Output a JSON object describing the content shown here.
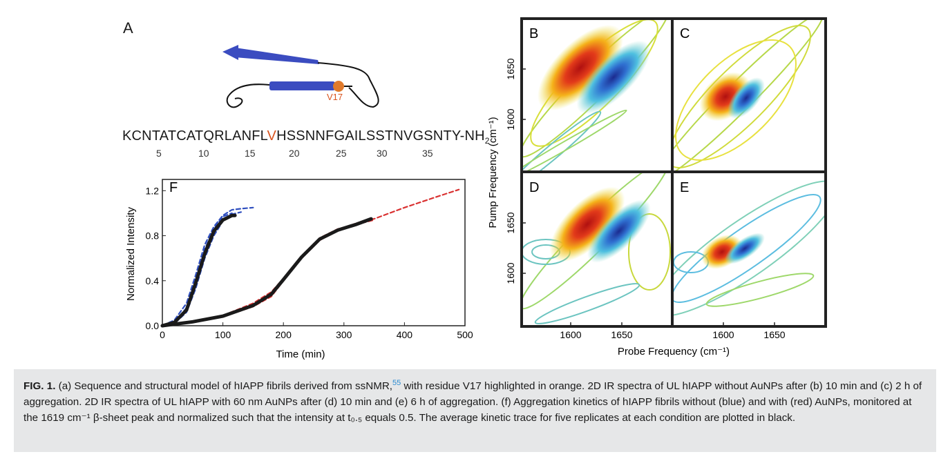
{
  "panelA": {
    "letter": "A",
    "residue_label": "V17",
    "sequence_pre": "KCNTATCATQRLANFL",
    "sequence_highlight": "V",
    "sequence_post": "HSSNNFGAILSSTNVGSNTY-NH",
    "sequence_sub": "2",
    "residue_numbers": [
      "5",
      "10",
      "15",
      "20",
      "25",
      "30",
      "35"
    ]
  },
  "spectra": {
    "panels": [
      "B",
      "C",
      "D",
      "E"
    ],
    "ylabel": "Pump Frequency (cm⁻¹)",
    "xlabel": "Probe Frequency (cm⁻¹)",
    "yticks": [
      "1650",
      "1600"
    ],
    "xticks": [
      "1600",
      "1650"
    ]
  },
  "chart_data": {
    "type": "line",
    "panel_letter": "F",
    "xlabel": "Time (min)",
    "ylabel": "Normalized Intensity",
    "xlim": [
      0,
      500
    ],
    "ylim": [
      0,
      1.3
    ],
    "xticks": [
      "0",
      "100",
      "200",
      "300",
      "400",
      "500"
    ],
    "yticks": [
      "0.0",
      "0.4",
      "0.8",
      "1.2"
    ],
    "series": [
      {
        "color": "#2f4fbf",
        "style": "dashed",
        "x": [
          0,
          20,
          40,
          55,
          70,
          85,
          100,
          115,
          130,
          150
        ],
        "y": [
          0,
          0.05,
          0.2,
          0.45,
          0.72,
          0.88,
          0.98,
          1.03,
          1.04,
          1.05
        ]
      },
      {
        "color": "#2f4fbf",
        "style": "dashed",
        "x": [
          0,
          20,
          40,
          55,
          70,
          85,
          100,
          115,
          130
        ],
        "y": [
          0,
          0.02,
          0.12,
          0.33,
          0.6,
          0.8,
          0.93,
          0.99,
          1.01
        ]
      },
      {
        "color": "#2f4fbf",
        "style": "dashed",
        "x": [
          0,
          20,
          40,
          55,
          70,
          85,
          100,
          115
        ],
        "y": [
          0,
          0.03,
          0.16,
          0.4,
          0.68,
          0.86,
          0.97,
          1.0
        ]
      },
      {
        "color": "#1a1a1a",
        "style": "solid",
        "x": [
          0,
          20,
          40,
          55,
          70,
          85,
          100,
          115,
          120
        ],
        "y": [
          0,
          0.03,
          0.14,
          0.38,
          0.64,
          0.84,
          0.94,
          0.98,
          0.98
        ]
      },
      {
        "color": "#d93030",
        "style": "dashed",
        "x": [
          0,
          50,
          100,
          150,
          180,
          200,
          230,
          260,
          290,
          320,
          350,
          400,
          450,
          490
        ],
        "y": [
          0,
          0.04,
          0.09,
          0.2,
          0.3,
          0.42,
          0.6,
          0.76,
          0.85,
          0.91,
          0.95,
          1.05,
          1.14,
          1.21
        ]
      },
      {
        "color": "#d93030",
        "style": "dashed",
        "x": [
          0,
          50,
          100,
          150,
          180,
          200,
          230,
          260,
          290,
          320,
          350
        ],
        "y": [
          0,
          0.03,
          0.08,
          0.17,
          0.26,
          0.4,
          0.62,
          0.78,
          0.86,
          0.9,
          0.94
        ]
      },
      {
        "color": "#1a1a1a",
        "style": "solid",
        "x": [
          0,
          50,
          100,
          150,
          180,
          200,
          230,
          260,
          290,
          320,
          345
        ],
        "y": [
          0,
          0.035,
          0.085,
          0.18,
          0.28,
          0.41,
          0.61,
          0.77,
          0.85,
          0.9,
          0.95
        ]
      }
    ]
  },
  "caption": {
    "label": "FIG. 1.",
    "part1": " (a) Sequence and structural model of hIAPP fibrils derived from ssNMR,",
    "ref": "55",
    "part2": " with residue V17 highlighted in orange. 2D IR spectra of UL hIAPP without AuNPs after (b) 10 min and (c) 2 h of aggregation. 2D IR spectra of UL hIAPP with 60 nm AuNPs after (d) 10 min and (e) 6 h of aggregation. (f) Aggregation kinetics of hIAPP fibrils without (blue) and with (red) AuNPs, monitored at the 1619 cm⁻¹ β-sheet peak and normalized such that the intensity at t₀.₅ equals 0.5. The average kinetic trace for five replicates at each condition are plotted in black."
  },
  "colors": {
    "orange": "#d9531e",
    "blue_strand": "#3b4cc0"
  }
}
